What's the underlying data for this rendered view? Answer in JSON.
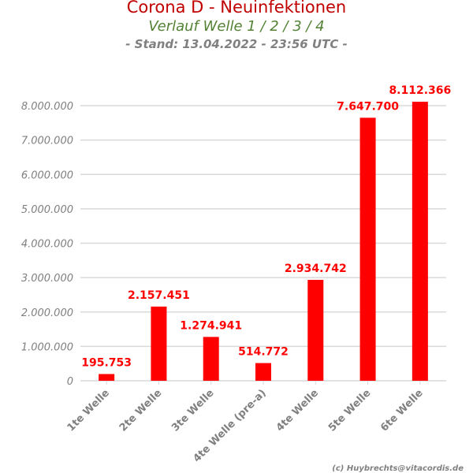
{
  "chart_data": {
    "type": "bar",
    "title": "Corona D - Neuinfektionen",
    "subtitle": "Verlauf Welle 1 / 2 / 3 / 4",
    "subtitle2": "- Stand: 13.04.2022 - 23:56 UTC -",
    "xlabel": "",
    "ylabel": "",
    "ylim": [
      0,
      8000000
    ],
    "yticks": [
      0,
      1000000,
      2000000,
      3000000,
      4000000,
      5000000,
      6000000,
      7000000,
      8000000
    ],
    "ytick_labels": [
      "0",
      "1.000.000",
      "2.000.000",
      "3.000.000",
      "4.000.000",
      "5.000.000",
      "6.000.000",
      "7.000.000",
      "8.000.000"
    ],
    "categories": [
      "1te Welle",
      "2te Welle",
      "3te Welle",
      "4te Welle (pre-a)",
      "4te Welle",
      "5te Welle",
      "6te Welle"
    ],
    "values": [
      195753,
      2157451,
      1274941,
      514772,
      2934742,
      7647700,
      8112366
    ],
    "data_labels": [
      "195.753",
      "2.157.451",
      "1.274.941",
      "514.772",
      "2.934.742",
      "7.647.700",
      "8.112.366"
    ],
    "grid": true,
    "bar_color": "#ff0000",
    "label_color": "#ff0000"
  },
  "credit": "(c) Huybrechts@vitacordis.de"
}
